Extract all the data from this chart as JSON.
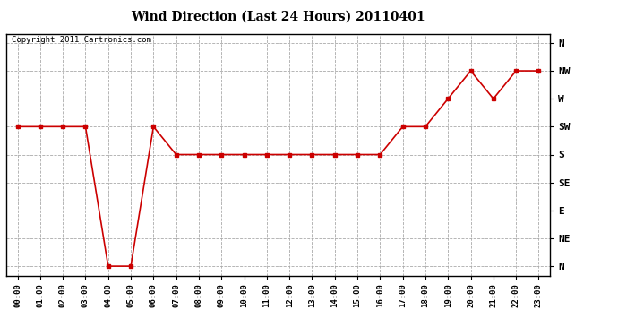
{
  "title": "Wind Direction (Last 24 Hours) 20110401",
  "copyright": "Copyright 2011 Cartronics.com",
  "line_color": "#cc0000",
  "marker": "s",
  "marker_size": 3,
  "background_color": "#ffffff",
  "grid_color": "#aaaaaa",
  "hours": [
    0,
    1,
    2,
    3,
    4,
    5,
    6,
    7,
    8,
    9,
    10,
    11,
    12,
    13,
    14,
    15,
    16,
    17,
    18,
    19,
    20,
    21,
    22,
    23
  ],
  "wind_values": [
    225,
    225,
    225,
    225,
    0,
    0,
    225,
    180,
    180,
    180,
    180,
    180,
    180,
    180,
    180,
    180,
    180,
    225,
    225,
    270,
    315,
    270,
    315,
    315
  ],
  "yticks": [
    360,
    315,
    270,
    225,
    180,
    135,
    90,
    45,
    0
  ],
  "ytick_labels": [
    "N",
    "NW",
    "W",
    "SW",
    "S",
    "SE",
    "E",
    "NE",
    "N"
  ],
  "ylim": [
    -15,
    375
  ],
  "xlim": [
    -0.5,
    23.5
  ],
  "xtick_labels": [
    "00:00",
    "01:00",
    "02:00",
    "03:00",
    "04:00",
    "05:00",
    "06:00",
    "07:00",
    "08:00",
    "09:00",
    "10:00",
    "11:00",
    "12:00",
    "13:00",
    "14:00",
    "15:00",
    "16:00",
    "17:00",
    "18:00",
    "19:00",
    "20:00",
    "21:00",
    "22:00",
    "23:00"
  ],
  "title_fontsize": 10,
  "ytick_fontsize": 8,
  "xtick_fontsize": 6.5,
  "copyright_fontsize": 6.5
}
